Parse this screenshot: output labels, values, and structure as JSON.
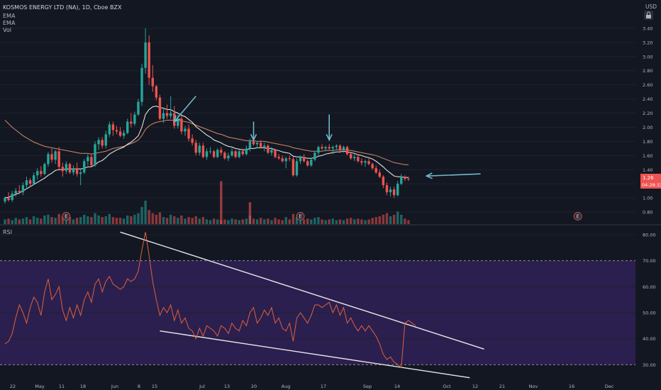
{
  "header": {
    "symbol_line": "KOSMOS ENERGY LTD (NA), 1D, Cboe BZX",
    "indicators": [
      "EMA",
      "EMA",
      "Vol"
    ],
    "currency": "USD"
  },
  "price_badge": {
    "value": "1.26",
    "countdown": "04:28:33"
  },
  "rsi_label": "RSI",
  "event_marker_glyph": "E",
  "colors": {
    "background": "#131722",
    "up": "#26a69a",
    "down": "#ef5350",
    "rsi_line": "#e0603a",
    "rsi_band": "#2b1f4f",
    "ema_fast": "#f2f2f2",
    "ema_slow": "#d4886a",
    "annotation_arrow": "#6fb8c9",
    "trendline": "#e6e6e6"
  },
  "chart_data": [
    {
      "type": "candlestick",
      "panel": "price",
      "ylim": [
        0.64,
        3.6
      ],
      "y_ticks": [
        "3.40",
        "3.20",
        "3.00",
        "2.80",
        "2.60",
        "2.40",
        "2.20",
        "2.00",
        "1.80",
        "1.60",
        "1.40",
        "1.20",
        "1.00",
        "0.80"
      ],
      "x_ticks": [
        "22",
        "May",
        "11",
        "18",
        "Jun",
        "8",
        "15",
        "Jul",
        "13",
        "20",
        "Aug",
        "17",
        "Sep",
        "14",
        "Oct",
        "12",
        "21",
        "Nov",
        "16",
        "Dec"
      ],
      "ohlc": [
        [
          0.95,
          1.02,
          0.92,
          1.0
        ],
        [
          1.0,
          1.08,
          0.95,
          0.97
        ],
        [
          0.97,
          1.1,
          0.94,
          1.06
        ],
        [
          1.06,
          1.14,
          1.02,
          1.1
        ],
        [
          1.1,
          1.18,
          1.05,
          1.08
        ],
        [
          1.08,
          1.22,
          1.04,
          1.18
        ],
        [
          1.18,
          1.3,
          1.12,
          1.25
        ],
        [
          1.25,
          1.28,
          1.15,
          1.2
        ],
        [
          1.2,
          1.36,
          1.18,
          1.32
        ],
        [
          1.32,
          1.42,
          1.26,
          1.38
        ],
        [
          1.38,
          1.45,
          1.3,
          1.34
        ],
        [
          1.34,
          1.5,
          1.32,
          1.48
        ],
        [
          1.48,
          1.65,
          1.44,
          1.62
        ],
        [
          1.62,
          1.7,
          1.5,
          1.54
        ],
        [
          1.54,
          1.68,
          1.48,
          1.66
        ],
        [
          1.66,
          1.72,
          1.4,
          1.44
        ],
        [
          1.44,
          1.5,
          1.3,
          1.38
        ],
        [
          1.38,
          1.52,
          1.34,
          1.48
        ],
        [
          1.48,
          1.5,
          1.34,
          1.36
        ],
        [
          1.36,
          1.46,
          1.32,
          1.42
        ],
        [
          1.42,
          1.5,
          1.3,
          1.34
        ],
        [
          1.34,
          1.4,
          1.18,
          1.36
        ],
        [
          1.36,
          1.55,
          1.34,
          1.52
        ],
        [
          1.52,
          1.62,
          1.46,
          1.58
        ],
        [
          1.58,
          1.62,
          1.44,
          1.46
        ],
        [
          1.46,
          1.8,
          1.44,
          1.76
        ],
        [
          1.76,
          1.86,
          1.68,
          1.82
        ],
        [
          1.82,
          1.86,
          1.7,
          1.74
        ],
        [
          1.74,
          1.95,
          1.7,
          1.9
        ],
        [
          1.9,
          2.08,
          1.86,
          2.04
        ],
        [
          2.04,
          2.08,
          1.88,
          1.96
        ],
        [
          1.96,
          2.02,
          1.9,
          1.94
        ],
        [
          1.94,
          2.0,
          1.86,
          1.88
        ],
        [
          1.88,
          1.96,
          1.84,
          1.92
        ],
        [
          1.92,
          2.12,
          1.9,
          2.08
        ],
        [
          2.08,
          2.2,
          2.0,
          2.05
        ],
        [
          2.05,
          2.22,
          2.02,
          2.18
        ],
        [
          2.18,
          2.4,
          2.16,
          2.36
        ],
        [
          2.36,
          2.9,
          2.3,
          2.84
        ],
        [
          2.84,
          3.4,
          2.76,
          3.2
        ],
        [
          3.2,
          3.3,
          2.6,
          2.7
        ],
        [
          2.7,
          2.88,
          2.5,
          2.58
        ],
        [
          2.58,
          2.6,
          2.38,
          2.42
        ],
        [
          2.42,
          2.46,
          2.1,
          2.12
        ],
        [
          2.12,
          2.28,
          2.06,
          2.2
        ],
        [
          2.2,
          2.32,
          2.12,
          2.16
        ],
        [
          2.16,
          2.44,
          2.12,
          2.2
        ],
        [
          2.2,
          2.3,
          1.98,
          2.02
        ],
        [
          2.02,
          2.18,
          1.98,
          2.12
        ],
        [
          2.12,
          2.16,
          1.9,
          1.94
        ],
        [
          1.94,
          2.02,
          1.88,
          1.98
        ],
        [
          1.98,
          2.04,
          1.8,
          1.84
        ],
        [
          1.84,
          1.9,
          1.74,
          1.78
        ],
        [
          1.78,
          1.82,
          1.6,
          1.64
        ],
        [
          1.64,
          1.78,
          1.6,
          1.74
        ],
        [
          1.74,
          1.78,
          1.56,
          1.58
        ],
        [
          1.58,
          1.7,
          1.54,
          1.66
        ],
        [
          1.66,
          1.72,
          1.62,
          1.66
        ],
        [
          1.66,
          1.68,
          1.56,
          1.58
        ],
        [
          1.58,
          1.7,
          1.56,
          1.68
        ],
        [
          1.68,
          1.72,
          1.6,
          1.64
        ],
        [
          1.64,
          1.66,
          1.54,
          1.56
        ],
        [
          1.56,
          1.64,
          1.52,
          1.6
        ],
        [
          1.6,
          1.7,
          1.58,
          1.66
        ],
        [
          1.66,
          1.68,
          1.56,
          1.58
        ],
        [
          1.58,
          1.68,
          1.56,
          1.66
        ],
        [
          1.66,
          1.7,
          1.6,
          1.62
        ],
        [
          1.62,
          1.74,
          1.6,
          1.7
        ],
        [
          1.7,
          1.84,
          1.66,
          1.8
        ],
        [
          1.8,
          1.84,
          1.74,
          1.76
        ],
        [
          1.76,
          1.8,
          1.7,
          1.78
        ],
        [
          1.78,
          1.82,
          1.7,
          1.72
        ],
        [
          1.72,
          1.78,
          1.66,
          1.74
        ],
        [
          1.74,
          1.76,
          1.62,
          1.64
        ],
        [
          1.64,
          1.72,
          1.6,
          1.68
        ],
        [
          1.68,
          1.7,
          1.56,
          1.58
        ],
        [
          1.58,
          1.62,
          1.54,
          1.56
        ],
        [
          1.56,
          1.6,
          1.5,
          1.52
        ],
        [
          1.52,
          1.58,
          1.42,
          1.56
        ],
        [
          1.56,
          1.6,
          1.52,
          1.55
        ],
        [
          1.55,
          1.58,
          1.3,
          1.32
        ],
        [
          1.32,
          1.56,
          1.3,
          1.52
        ],
        [
          1.52,
          1.6,
          1.48,
          1.58
        ],
        [
          1.58,
          1.62,
          1.5,
          1.52
        ],
        [
          1.52,
          1.54,
          1.44,
          1.46
        ],
        [
          1.46,
          1.56,
          1.44,
          1.54
        ],
        [
          1.54,
          1.66,
          1.52,
          1.64
        ],
        [
          1.64,
          1.74,
          1.6,
          1.72
        ],
        [
          1.72,
          1.76,
          1.68,
          1.7
        ],
        [
          1.7,
          1.74,
          1.66,
          1.72
        ],
        [
          1.72,
          1.76,
          1.68,
          1.7
        ],
        [
          1.7,
          1.74,
          1.62,
          1.72
        ],
        [
          1.72,
          1.76,
          1.68,
          1.74
        ],
        [
          1.74,
          1.76,
          1.66,
          1.68
        ],
        [
          1.68,
          1.74,
          1.64,
          1.72
        ],
        [
          1.72,
          1.74,
          1.6,
          1.62
        ],
        [
          1.62,
          1.64,
          1.54,
          1.56
        ],
        [
          1.56,
          1.62,
          1.52,
          1.58
        ],
        [
          1.58,
          1.6,
          1.5,
          1.52
        ],
        [
          1.52,
          1.56,
          1.46,
          1.5
        ],
        [
          1.5,
          1.54,
          1.44,
          1.52
        ],
        [
          1.52,
          1.56,
          1.46,
          1.48
        ],
        [
          1.48,
          1.5,
          1.4,
          1.42
        ],
        [
          1.42,
          1.46,
          1.34,
          1.36
        ],
        [
          1.36,
          1.4,
          1.28,
          1.3
        ],
        [
          1.3,
          1.32,
          1.14,
          1.18
        ],
        [
          1.18,
          1.22,
          1.04,
          1.08
        ],
        [
          1.08,
          1.16,
          1.02,
          1.12
        ],
        [
          1.12,
          1.16,
          1.0,
          1.04
        ],
        [
          1.04,
          1.24,
          1.02,
          1.2
        ],
        [
          1.2,
          1.34,
          1.18,
          1.3
        ],
        [
          1.3,
          1.32,
          1.24,
          1.27
        ],
        [
          1.27,
          1.3,
          1.24,
          1.26
        ]
      ],
      "ema_fast": [
        1.0,
        1.01,
        1.03,
        1.05,
        1.07,
        1.1,
        1.13,
        1.16,
        1.19,
        1.22,
        1.25,
        1.28,
        1.32,
        1.35,
        1.39,
        1.4,
        1.4,
        1.41,
        1.41,
        1.41,
        1.41,
        1.41,
        1.42,
        1.44,
        1.44,
        1.47,
        1.51,
        1.53,
        1.57,
        1.62,
        1.65,
        1.68,
        1.7,
        1.72,
        1.76,
        1.79,
        1.83,
        1.88,
        2.0,
        2.18,
        2.25,
        2.29,
        2.3,
        2.28,
        2.27,
        2.25,
        2.25,
        2.22,
        2.2,
        2.17,
        2.15,
        2.11,
        2.07,
        2.01,
        1.97,
        1.93,
        1.89,
        1.86,
        1.82,
        1.8,
        1.78,
        1.75,
        1.73,
        1.72,
        1.7,
        1.69,
        1.68,
        1.68,
        1.7,
        1.7,
        1.71,
        1.71,
        1.71,
        1.7,
        1.7,
        1.68,
        1.67,
        1.65,
        1.64,
        1.63,
        1.59,
        1.58,
        1.58,
        1.57,
        1.56,
        1.56,
        1.57,
        1.59,
        1.6,
        1.62,
        1.63,
        1.64,
        1.65,
        1.65,
        1.66,
        1.65,
        1.64,
        1.63,
        1.61,
        1.6,
        1.58,
        1.57,
        1.55,
        1.52,
        1.48,
        1.44,
        1.39,
        1.35,
        1.31,
        1.3,
        1.3,
        1.29,
        1.29
      ],
      "ema_slow": [
        2.1,
        2.05,
        2.0,
        1.96,
        1.92,
        1.88,
        1.85,
        1.82,
        1.79,
        1.77,
        1.75,
        1.73,
        1.72,
        1.71,
        1.7,
        1.69,
        1.68,
        1.67,
        1.66,
        1.65,
        1.64,
        1.63,
        1.63,
        1.63,
        1.62,
        1.63,
        1.64,
        1.65,
        1.66,
        1.68,
        1.7,
        1.71,
        1.72,
        1.73,
        1.75,
        1.77,
        1.79,
        1.82,
        1.88,
        1.97,
        2.02,
        2.05,
        2.07,
        2.08,
        2.09,
        2.1,
        2.1,
        2.1,
        2.1,
        2.09,
        2.08,
        2.07,
        2.05,
        2.03,
        2.01,
        1.99,
        1.97,
        1.95,
        1.93,
        1.91,
        1.9,
        1.88,
        1.86,
        1.85,
        1.84,
        1.83,
        1.82,
        1.81,
        1.81,
        1.81,
        1.8,
        1.8,
        1.8,
        1.79,
        1.78,
        1.77,
        1.76,
        1.75,
        1.74,
        1.73,
        1.71,
        1.7,
        1.69,
        1.68,
        1.67,
        1.66,
        1.66,
        1.66,
        1.66,
        1.67,
        1.67,
        1.67,
        1.68,
        1.68,
        1.68,
        1.68,
        1.67,
        1.66,
        1.65,
        1.64,
        1.63,
        1.62,
        1.61,
        1.6,
        1.58,
        1.56,
        1.54,
        1.52,
        1.5,
        1.49,
        1.48,
        1.47,
        1.47
      ],
      "volume": [
        6,
        7,
        5,
        8,
        6,
        7,
        9,
        6,
        10,
        8,
        7,
        11,
        12,
        9,
        8,
        13,
        10,
        7,
        9,
        6,
        8,
        9,
        12,
        10,
        9,
        14,
        11,
        9,
        10,
        13,
        9,
        8,
        8,
        7,
        11,
        10,
        12,
        14,
        22,
        30,
        18,
        14,
        12,
        15,
        9,
        8,
        12,
        10,
        8,
        11,
        7,
        9,
        8,
        10,
        7,
        9,
        6,
        5,
        7,
        6,
        5,
        6,
        5,
        7,
        6,
        5,
        6,
        7,
        11,
        7,
        6,
        8,
        6,
        7,
        5,
        8,
        6,
        5,
        9,
        6,
        13,
        9,
        7,
        6,
        7,
        6,
        8,
        9,
        6,
        5,
        6,
        7,
        5,
        6,
        5,
        7,
        8,
        6,
        7,
        6,
        5,
        6,
        8,
        9,
        10,
        12,
        14,
        10,
        12,
        16,
        12,
        7,
        5
      ],
      "volume_spikes": [
        {
          "bar": 60,
          "value": 55
        },
        {
          "bar": 68,
          "value": 28
        }
      ],
      "annotations": [
        {
          "type": "arrow",
          "from": [
            53,
            2.44
          ],
          "to": [
            47,
            2.08
          ]
        },
        {
          "type": "arrow",
          "from": [
            69,
            2.08
          ],
          "to": [
            69,
            1.82
          ]
        },
        {
          "type": "arrow",
          "from": [
            90,
            2.18
          ],
          "to": [
            90,
            1.82
          ]
        },
        {
          "type": "arrow",
          "from": [
            132,
            1.34
          ],
          "to": [
            117,
            1.31
          ]
        }
      ],
      "earnings_events": [
        17,
        82,
        159
      ]
    },
    {
      "type": "line",
      "panel": "rsi",
      "title": "RSI",
      "ylim": [
        23,
        83
      ],
      "y_ticks": [
        "80.00",
        "70.00",
        "60.00",
        "50.00",
        "40.00",
        "30.00"
      ],
      "band": [
        30,
        70
      ],
      "values": [
        38,
        39,
        42,
        48,
        53,
        50,
        46,
        52,
        56,
        54,
        49,
        58,
        63,
        55,
        57,
        60,
        51,
        47,
        52,
        48,
        53,
        49,
        55,
        58,
        54,
        61,
        63,
        58,
        62,
        64,
        61,
        60,
        59,
        60,
        63,
        62,
        63,
        66,
        74,
        81,
        72,
        62,
        55,
        49,
        52,
        50,
        53,
        47,
        51,
        46,
        48,
        44,
        43,
        40,
        44,
        41,
        45,
        44,
        43,
        41,
        45,
        44,
        42,
        46,
        44,
        43,
        47,
        45,
        50,
        52,
        46,
        48,
        51,
        49,
        52,
        46,
        48,
        44,
        43,
        46,
        39,
        48,
        50,
        48,
        46,
        49,
        53,
        53,
        52,
        53,
        54,
        50,
        53,
        49,
        52,
        46,
        48,
        45,
        43,
        45,
        43,
        45,
        43,
        41,
        38,
        34,
        32,
        33,
        31,
        30,
        29,
        46,
        47,
        46,
        45
      ],
      "trendlines": [
        {
          "from": [
            32,
            81
          ],
          "to": [
            133,
            36
          ]
        },
        {
          "from": [
            43,
            43
          ],
          "to": [
            129,
            25
          ]
        }
      ]
    }
  ]
}
